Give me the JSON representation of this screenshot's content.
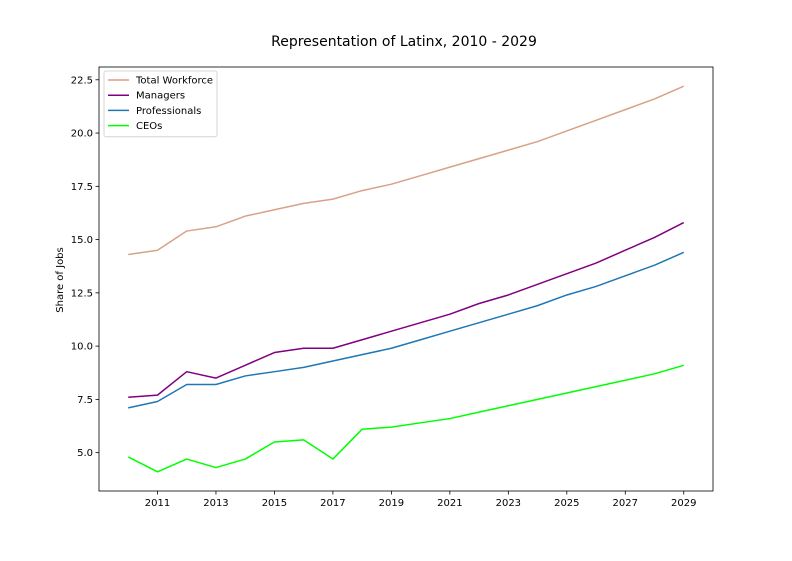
{
  "chart_data": {
    "type": "line",
    "title": "Representation of Latinx, 2010 - 2029",
    "xlabel": "",
    "ylabel": "Share of Jobs",
    "xlim": [
      2009,
      2030
    ],
    "ylim": [
      3.2,
      23.1
    ],
    "x_ticks": [
      2011,
      2013,
      2015,
      2017,
      2019,
      2021,
      2023,
      2025,
      2027,
      2029
    ],
    "y_ticks": [
      5.0,
      7.5,
      10.0,
      12.5,
      15.0,
      17.5,
      20.0,
      22.5
    ],
    "y_tick_labels": [
      "5.0",
      "7.5",
      "10.0",
      "12.5",
      "15.0",
      "17.5",
      "20.0",
      "22.5"
    ],
    "grid": false,
    "legend_position": "top-left",
    "x": [
      2010,
      2011,
      2012,
      2013,
      2014,
      2015,
      2016,
      2017,
      2018,
      2019,
      2020,
      2021,
      2022,
      2023,
      2024,
      2025,
      2026,
      2027,
      2028,
      2029
    ],
    "series": [
      {
        "name": "Total Workforce",
        "color": "#d9a187",
        "values": [
          14.3,
          14.5,
          15.4,
          15.6,
          16.1,
          16.4,
          16.7,
          16.9,
          17.3,
          17.6,
          18.0,
          18.4,
          18.8,
          19.2,
          19.6,
          20.1,
          20.6,
          21.1,
          21.6,
          22.2
        ]
      },
      {
        "name": "Managers",
        "color": "#800080",
        "values": [
          7.6,
          7.7,
          8.8,
          8.5,
          9.1,
          9.7,
          9.9,
          9.9,
          10.3,
          10.7,
          11.1,
          11.5,
          12.0,
          12.4,
          12.9,
          13.4,
          13.9,
          14.5,
          15.1,
          15.8
        ]
      },
      {
        "name": "Professionals",
        "color": "#1f77b4",
        "values": [
          7.1,
          7.4,
          8.2,
          8.2,
          8.6,
          8.8,
          9.0,
          9.3,
          9.6,
          9.9,
          10.3,
          10.7,
          11.1,
          11.5,
          11.9,
          12.4,
          12.8,
          13.3,
          13.8,
          14.4
        ]
      },
      {
        "name": "CEOs",
        "color": "#00ff00",
        "values": [
          4.8,
          4.1,
          4.7,
          4.3,
          4.7,
          5.5,
          5.6,
          4.7,
          6.1,
          6.2,
          6.4,
          6.6,
          6.9,
          7.2,
          7.5,
          7.8,
          8.1,
          8.4,
          8.7,
          9.1
        ]
      }
    ]
  }
}
